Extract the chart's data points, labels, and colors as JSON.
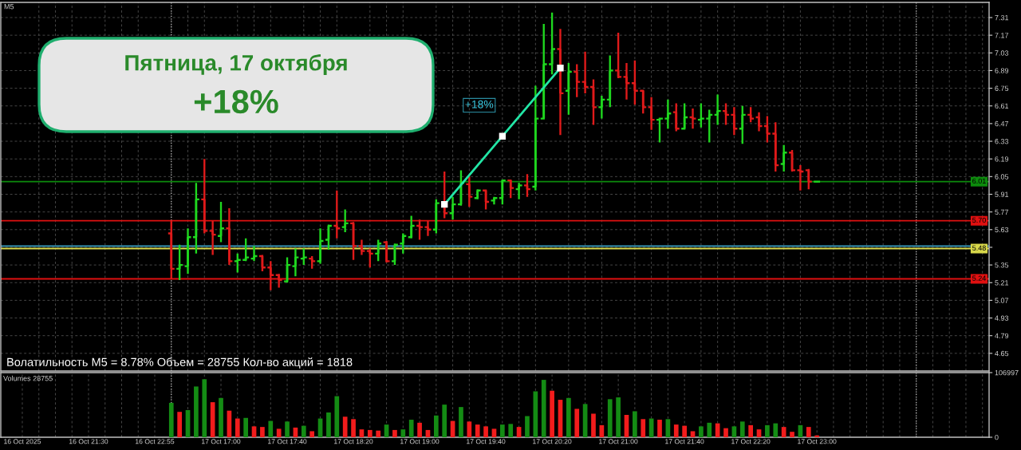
{
  "chart_data": [
    {
      "type": "candlestick",
      "title": "M5",
      "categories": [
        "16 Oct 2025",
        null,
        null,
        null,
        null,
        null,
        null,
        null,
        "16 Oct 21:30",
        null,
        null,
        null,
        null,
        null,
        null,
        null,
        "16 Oct 22:55",
        null,
        null,
        null,
        null,
        null,
        null,
        null,
        "17 Oct 17:00",
        null,
        null,
        null,
        null,
        null,
        null,
        null,
        "17 Oct 17:40",
        null,
        null,
        null,
        null,
        null,
        null,
        null,
        "17 Oct 18:20",
        null,
        null,
        null,
        null,
        null,
        null,
        null,
        "17 Oct 19:00",
        null,
        null,
        null,
        null,
        null,
        null,
        null,
        "17 Oct 19:40",
        null,
        null,
        null,
        null,
        null,
        null,
        null,
        "17 Oct 20:20",
        null,
        null,
        null,
        null,
        null,
        null,
        null,
        "17 Oct 21:00",
        null,
        null,
        null,
        null,
        null,
        null,
        null,
        "17 Oct 21:40",
        null,
        null,
        null,
        null,
        null,
        null,
        null,
        "17 Oct 22:20",
        null,
        null,
        null,
        null,
        null,
        null,
        null,
        "17 Oct 23:00",
        null,
        null,
        null,
        null,
        null,
        null,
        null,
        null,
        null,
        null,
        null,
        null,
        null,
        null,
        null,
        null,
        null,
        null,
        null,
        null
      ],
      "ohlc": [
        null,
        null,
        null,
        null,
        null,
        null,
        null,
        null,
        null,
        null,
        null,
        null,
        null,
        null,
        null,
        null,
        null,
        null,
        [
          5.6,
          5.7,
          5.24,
          5.32
        ],
        [
          5.32,
          5.51,
          5.23,
          5.35
        ],
        [
          5.34,
          5.64,
          5.28,
          5.57
        ],
        [
          5.57,
          6.0,
          5.44,
          5.87
        ],
        [
          5.87,
          6.19,
          5.6,
          5.62
        ],
        [
          5.62,
          5.7,
          5.43,
          5.59
        ],
        [
          5.58,
          5.85,
          5.53,
          5.64
        ],
        [
          5.64,
          5.8,
          5.35,
          5.38
        ],
        [
          5.38,
          5.44,
          5.29,
          5.39
        ],
        [
          5.39,
          5.56,
          5.38,
          5.41
        ],
        [
          5.4,
          5.5,
          5.38,
          5.42
        ],
        [
          5.42,
          5.43,
          5.3,
          5.33
        ],
        [
          5.33,
          5.38,
          5.15,
          5.27
        ],
        [
          5.27,
          5.28,
          5.17,
          5.23
        ],
        [
          5.22,
          5.41,
          5.21,
          5.35
        ],
        [
          5.34,
          5.48,
          5.26,
          5.41
        ],
        [
          5.4,
          5.48,
          5.35,
          5.41
        ],
        [
          5.4,
          5.42,
          5.32,
          5.38
        ],
        [
          5.38,
          5.64,
          5.36,
          5.54
        ],
        [
          5.55,
          5.67,
          5.47,
          5.66
        ],
        [
          5.66,
          5.94,
          5.56,
          5.64
        ],
        [
          5.65,
          5.79,
          5.61,
          5.68
        ],
        [
          5.68,
          5.69,
          5.39,
          5.5
        ],
        [
          5.5,
          5.55,
          5.43,
          5.46
        ],
        [
          5.46,
          5.48,
          5.33,
          5.44
        ],
        [
          5.44,
          5.55,
          5.38,
          5.52
        ],
        [
          5.53,
          5.54,
          5.37,
          5.38
        ],
        [
          5.38,
          5.52,
          5.35,
          5.51
        ],
        [
          5.52,
          5.6,
          5.44,
          5.58
        ],
        [
          5.57,
          5.74,
          5.56,
          5.66
        ],
        [
          5.66,
          5.71,
          5.55,
          5.65
        ],
        [
          5.65,
          5.7,
          5.58,
          5.63
        ],
        [
          5.63,
          5.87,
          5.6,
          5.84
        ],
        [
          5.84,
          6.09,
          5.72,
          5.76
        ],
        [
          5.76,
          5.89,
          5.71,
          5.83
        ],
        [
          5.83,
          6.1,
          5.82,
          6.0
        ],
        [
          5.99,
          6.05,
          5.81,
          5.89
        ],
        [
          5.88,
          5.95,
          5.87,
          5.94
        ],
        [
          5.94,
          5.94,
          5.79,
          5.85
        ],
        [
          5.86,
          5.89,
          5.83,
          5.88
        ],
        [
          5.88,
          6.02,
          5.83,
          6.02
        ],
        [
          6.02,
          6.02,
          5.88,
          5.96
        ],
        [
          5.95,
          6.0,
          5.87,
          5.98
        ],
        [
          5.98,
          6.07,
          5.89,
          5.95
        ],
        [
          5.97,
          6.77,
          5.94,
          6.51
        ],
        [
          6.51,
          7.26,
          6.51,
          6.94
        ],
        [
          6.94,
          7.35,
          6.86,
          7.06
        ],
        [
          7.06,
          7.22,
          6.38,
          6.71
        ],
        [
          6.73,
          6.95,
          6.54,
          6.88
        ],
        [
          6.88,
          6.94,
          6.68,
          6.8
        ],
        [
          6.8,
          7.04,
          6.71,
          6.76
        ],
        [
          6.76,
          6.82,
          6.46,
          6.6
        ],
        [
          6.6,
          6.69,
          6.51,
          6.66
        ],
        [
          6.66,
          7.01,
          6.6,
          6.89
        ],
        [
          6.89,
          7.19,
          6.83,
          6.84
        ],
        [
          6.84,
          6.95,
          6.66,
          6.79
        ],
        [
          6.79,
          6.97,
          6.62,
          6.73
        ],
        [
          6.73,
          6.73,
          6.55,
          6.6
        ],
        [
          6.6,
          6.68,
          6.42,
          6.5
        ],
        [
          6.5,
          6.51,
          6.32,
          6.51
        ],
        [
          6.51,
          6.66,
          6.43,
          6.55
        ],
        [
          6.56,
          6.63,
          6.41,
          6.43
        ],
        [
          6.43,
          6.63,
          6.43,
          6.52
        ],
        [
          6.52,
          6.59,
          6.43,
          6.51
        ],
        [
          6.5,
          6.63,
          6.44,
          6.51
        ],
        [
          6.51,
          6.58,
          6.32,
          6.54
        ],
        [
          6.54,
          6.7,
          6.46,
          6.57
        ],
        [
          6.57,
          6.63,
          6.46,
          6.54
        ],
        [
          6.54,
          6.6,
          6.38,
          6.43
        ],
        [
          6.43,
          6.61,
          6.31,
          6.54
        ],
        [
          6.54,
          6.6,
          6.48,
          6.51
        ],
        [
          6.52,
          6.56,
          6.41,
          6.45
        ],
        [
          6.45,
          6.53,
          6.32,
          6.39
        ],
        [
          6.39,
          6.48,
          6.09,
          6.14
        ],
        [
          6.15,
          6.3,
          6.09,
          6.24
        ],
        [
          6.24,
          6.26,
          6.09,
          6.1
        ],
        [
          6.1,
          6.14,
          5.94,
          6.09
        ],
        [
          6.1,
          6.11,
          5.95,
          6.01
        ],
        [
          6.01,
          6.01,
          6.01,
          6.01
        ],
        null,
        null,
        null,
        null,
        null,
        null,
        null,
        null,
        null,
        null,
        null,
        null,
        null,
        null,
        null,
        null,
        null,
        null,
        null,
        null
      ],
      "colors": [
        null,
        null,
        null,
        null,
        null,
        null,
        null,
        null,
        null,
        null,
        null,
        null,
        null,
        null,
        null,
        null,
        null,
        null,
        "#e01a1a",
        "#1fd81f",
        "#1fd81f",
        "#1fd81f",
        "#e01a1a",
        "#e01a1a",
        "#1fd81f",
        "#e01a1a",
        "#1fd81f",
        "#1fd81f",
        "#1fd81f",
        "#e01a1a",
        "#e01a1a",
        "#e01a1a",
        "#1fd81f",
        "#1fd81f",
        "#1fd81f",
        "#e01a1a",
        "#1fd81f",
        "#1fd81f",
        "#e01a1a",
        "#1fd81f",
        "#e01a1a",
        "#e01a1a",
        "#e01a1a",
        "#1fd81f",
        "#e01a1a",
        "#1fd81f",
        "#1fd81f",
        "#1fd81f",
        "#e01a1a",
        "#e01a1a",
        "#1fd81f",
        "#e01a1a",
        "#1fd81f",
        "#1fd81f",
        "#e01a1a",
        "#1fd81f",
        "#e01a1a",
        "#1fd81f",
        "#1fd81f",
        "#e01a1a",
        "#1fd81f",
        "#e01a1a",
        "#1fd81f",
        "#1fd81f",
        "#1fd81f",
        "#e01a1a",
        "#1fd81f",
        "#e01a1a",
        "#e01a1a",
        "#e01a1a",
        "#1fd81f",
        "#1fd81f",
        "#e01a1a",
        "#e01a1a",
        "#e01a1a",
        "#e01a1a",
        "#e01a1a",
        "#1fd81f",
        "#1fd81f",
        "#e01a1a",
        "#1fd81f",
        "#e01a1a",
        "#1fd81f",
        "#1fd81f",
        "#1fd81f",
        "#e01a1a",
        "#e01a1a",
        "#1fd81f",
        "#e01a1a",
        "#e01a1a",
        "#e01a1a",
        "#e01a1a",
        "#1fd81f",
        "#e01a1a",
        "#e01a1a",
        "#e01a1a",
        "#1fd81f",
        null,
        null,
        null,
        null,
        null,
        null,
        null,
        null,
        null,
        null,
        null,
        null,
        null,
        null,
        null,
        null,
        null,
        null,
        null,
        null
      ],
      "series": [
        {
          "type": "line",
          "color": "#22e6a6",
          "values": [
            null,
            null,
            null,
            null,
            null,
            null,
            null,
            null,
            null,
            null,
            null,
            null,
            null,
            null,
            null,
            null,
            null,
            null,
            null,
            null,
            null,
            null,
            null,
            null,
            null,
            null,
            null,
            null,
            null,
            null,
            null,
            null,
            null,
            null,
            null,
            null,
            null,
            null,
            null,
            null,
            null,
            null,
            null,
            null,
            null,
            null,
            null,
            null,
            null,
            null,
            null,
            5.83,
            null,
            null,
            null,
            null,
            null,
            null,
            6.37,
            null,
            null,
            null,
            null,
            null,
            null,
            6.91,
            null,
            null,
            null,
            null,
            null,
            null,
            null,
            null,
            null,
            null,
            null,
            null,
            null,
            null,
            null,
            null,
            null,
            null,
            null,
            null,
            null,
            null,
            null,
            null,
            null,
            null,
            null,
            null,
            null,
            null,
            null,
            null,
            null,
            null,
            null,
            null,
            null,
            null,
            null,
            null,
            null,
            null,
            null,
            null,
            null,
            null,
            null,
            null,
            null,
            null,
            null
          ]
        }
      ],
      "marker": "square",
      "ylim": [
        4.51,
        7.43
      ],
      "yticks": [
        7.31,
        7.17,
        7.03,
        6.89,
        6.75,
        6.61,
        6.47,
        6.33,
        6.19,
        6.05,
        5.91,
        5.77,
        5.63,
        {
          "value": 5.49,
          "label": null
        },
        5.35,
        5.21,
        5.07,
        4.93,
        4.79,
        4.65
      ],
      "grid": true,
      "ref_lines": [
        {
          "axis": "y",
          "value": 6.01,
          "label": "6.01",
          "color": "#0c8c0c"
        },
        {
          "axis": "y",
          "value": 5.7,
          "label": "5.70",
          "color": "#e01010"
        },
        {
          "axis": "y",
          "value": 5.5,
          "color": "#3b9fc0"
        },
        {
          "axis": "y",
          "value": 5.48,
          "label": "5.48",
          "color": "#d8d84a"
        },
        {
          "axis": "y",
          "value": 5.24,
          "label": "5.24",
          "color": "#e01010"
        }
      ],
      "annotations": [
        "Пятница, 17 октября",
        "+18%",
        "+18%",
        "Волатильность M5 = 8.78% Объем = 28755 Кол-во акций = 1818"
      ]
    },
    {
      "type": "bar",
      "title": "Volumes 28755",
      "categories": [
        null,
        null,
        null,
        null,
        null,
        null,
        null,
        null,
        null,
        null,
        null,
        null,
        null,
        null,
        null,
        null,
        null,
        null,
        null,
        null,
        null,
        null,
        null,
        null,
        null,
        null,
        null,
        null,
        null,
        null,
        null,
        null,
        null,
        null,
        null,
        null,
        null,
        null,
        null,
        null,
        null,
        null,
        null,
        null,
        null,
        null,
        null,
        null,
        null,
        null,
        null,
        null,
        null,
        null,
        null,
        null,
        null,
        null,
        null,
        null,
        null,
        null,
        null,
        null,
        null,
        null,
        null,
        null,
        null,
        null,
        null,
        null,
        null,
        null,
        null,
        null,
        null,
        null,
        null,
        null,
        null,
        null,
        null,
        null,
        null,
        null,
        null,
        null,
        null,
        null,
        null,
        null,
        null,
        null,
        null,
        null,
        null,
        null,
        null,
        null,
        null,
        null,
        null,
        null,
        null,
        null,
        null,
        null,
        null,
        null,
        null,
        null,
        null,
        null,
        null,
        null,
        null
      ],
      "values": [
        null,
        null,
        null,
        null,
        null,
        null,
        null,
        null,
        null,
        null,
        null,
        null,
        null,
        null,
        null,
        null,
        null,
        null,
        57000,
        42000,
        45000,
        84000,
        96000,
        58000,
        65000,
        44000,
        31000,
        32000,
        18000,
        17000,
        27000,
        14000,
        26000,
        16000,
        19000,
        10000,
        31000,
        41000,
        68000,
        34000,
        30000,
        13000,
        12000,
        11000,
        21000,
        12000,
        13000,
        29000,
        24000,
        12000,
        36000,
        54000,
        27000,
        50000,
        26000,
        21000,
        18000,
        14000,
        21000,
        22000,
        17000,
        35000,
        76000,
        95000,
        77000,
        62000,
        65000,
        47000,
        55000,
        39000,
        20000,
        63000,
        66000,
        37000,
        43000,
        30000,
        31000,
        29000,
        30000,
        21000,
        19000,
        10000,
        18000,
        24000,
        23000,
        15000,
        18000,
        26000,
        20000,
        13000,
        20000,
        23000,
        17000,
        9000,
        20000,
        17000,
        3000,
        null,
        null,
        null,
        null,
        null,
        null,
        null,
        null,
        null,
        null,
        null,
        null,
        null,
        null,
        null,
        null,
        null,
        null,
        null,
        null
      ],
      "colors": [
        null,
        null,
        null,
        null,
        null,
        null,
        null,
        null,
        null,
        null,
        null,
        null,
        null,
        null,
        null,
        null,
        null,
        null,
        "#148c14",
        "#f21c1c",
        "#148c14",
        "#148c14",
        "#148c14",
        "#f21c1c",
        "#148c14",
        "#f21c1c",
        "#f21c1c",
        "#148c14",
        "#f21c1c",
        "#f21c1c",
        "#148c14",
        "#f21c1c",
        "#148c14",
        "#f21c1c",
        "#148c14",
        "#f21c1c",
        "#148c14",
        "#148c14",
        "#148c14",
        "#f21c1c",
        "#f21c1c",
        "#f21c1c",
        "#f21c1c",
        "#f21c1c",
        "#148c14",
        "#f21c1c",
        "#148c14",
        "#148c14",
        "#f21c1c",
        "#f21c1c",
        "#148c14",
        "#148c14",
        "#f21c1c",
        "#148c14",
        "#f21c1c",
        "#f21c1c",
        "#f21c1c",
        "#f21c1c",
        "#148c14",
        "#148c14",
        "#f21c1c",
        "#148c14",
        "#148c14",
        "#148c14",
        "#f21c1c",
        "#f21c1c",
        "#148c14",
        "#f21c1c",
        "#148c14",
        "#f21c1c",
        "#f21c1c",
        "#148c14",
        "#148c14",
        "#f21c1c",
        "#148c14",
        "#f21c1c",
        "#148c14",
        "#f21c1c",
        "#148c14",
        "#f21c1c",
        "#f21c1c",
        "#f21c1c",
        "#148c14",
        "#148c14",
        "#f21c1c",
        "#f21c1c",
        "#148c14",
        "#148c14",
        "#f21c1c",
        "#f21c1c",
        "#148c14",
        "#148c14",
        "#f21c1c",
        "#f21c1c",
        "#148c14",
        "#f21c1c",
        "#f21c1c",
        null,
        null,
        null,
        null,
        null,
        null,
        null,
        null,
        null,
        null,
        null,
        null,
        null,
        null,
        null,
        null,
        null,
        null,
        null,
        null
      ],
      "ylim": [
        0,
        106997
      ],
      "yticks": [
        106997,
        0
      ],
      "grid": "x"
    }
  ]
}
